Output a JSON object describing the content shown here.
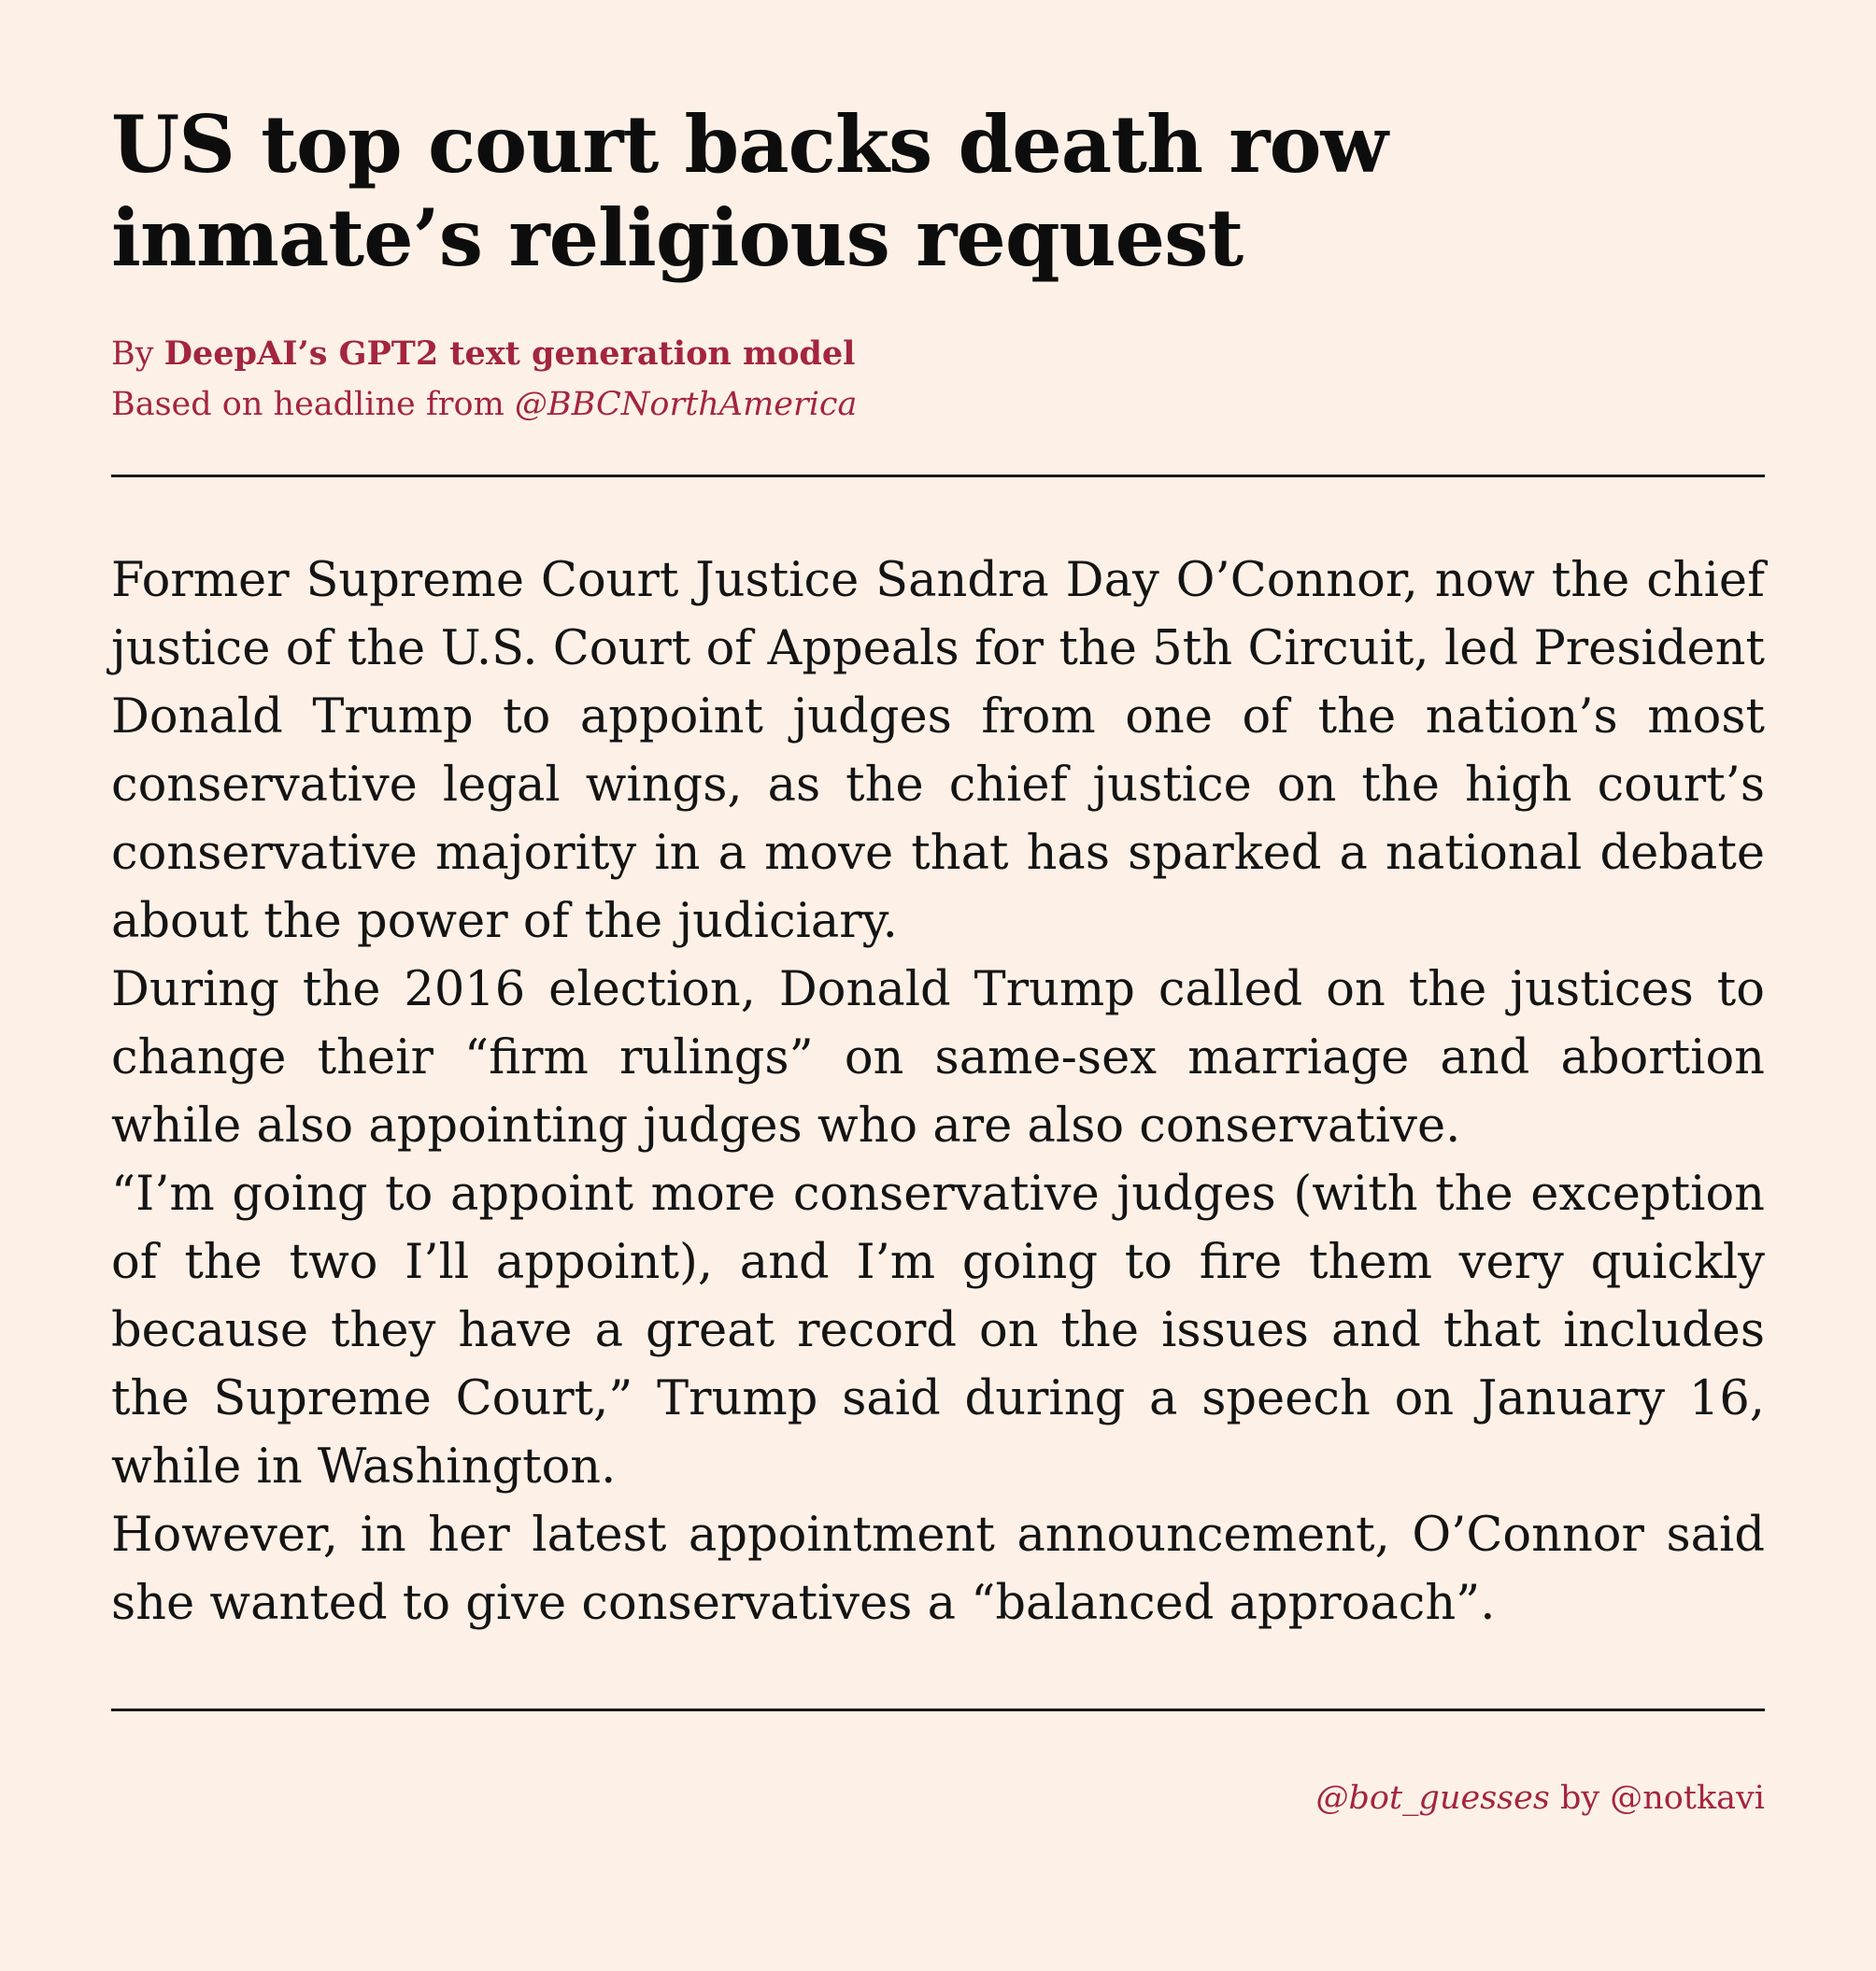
{
  "article": {
    "headline": "US top court backs death row inmate’s religious request",
    "byline_prefix": "By ",
    "byline_author": "DeepAI’s GPT2 text generation model",
    "source_prefix": "Based on headline from ",
    "source_handle": "@BBCNorthAmerica",
    "paragraphs": [
      "Former Supreme Court Justice Sandra Day O’Connor, now the chief justice of the U.S. Court of Appeals for the 5th Circuit, led President Donald Trump to appoint judges from one of the nation’s most conservative legal wings, as the chief justice on the high court’s conservative majority in a move that has sparked a national debate about the power of the judiciary.",
      "During the 2016 election, Donald Trump called on the justices to change their “firm rulings” on same-sex marriage and abortion while also appointing judges who are also conservative.",
      "“I’m going to appoint more conservative judges (with the exception of the two I’ll appoint), and I’m going to fire them very quickly because they have a great record on the issues and that includes the Supreme Court,” Trump said during a speech on January 16, while in Washington.",
      "However, in her latest appointment announcement, O’Connor said she wanted to give conservatives a “balanced approach”."
    ]
  },
  "footer": {
    "bot_handle": "@bot_guesses",
    "by_word": " by ",
    "author_handle": "@notkavi"
  }
}
